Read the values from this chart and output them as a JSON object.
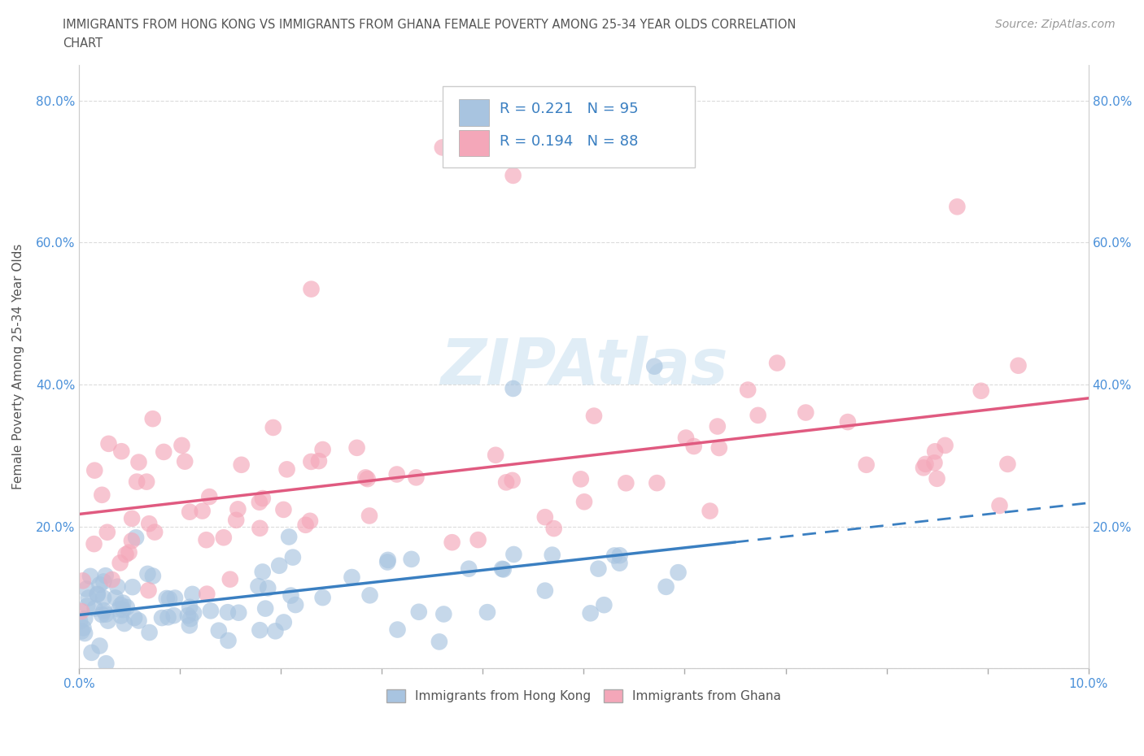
{
  "title_line1": "IMMIGRANTS FROM HONG KONG VS IMMIGRANTS FROM GHANA FEMALE POVERTY AMONG 25-34 YEAR OLDS CORRELATION",
  "title_line2": "CHART",
  "source": "Source: ZipAtlas.com",
  "ylabel": "Female Poverty Among 25-34 Year Olds",
  "xlim": [
    0.0,
    0.1
  ],
  "ylim": [
    0.0,
    0.85
  ],
  "hk_color": "#a8c4e0",
  "ghana_color": "#f4a7b9",
  "hk_line_color": "#3a7fc1",
  "ghana_line_color": "#e05a80",
  "hk_R": 0.221,
  "hk_N": 95,
  "ghana_R": 0.194,
  "ghana_N": 88,
  "background_color": "#ffffff",
  "grid_color": "#cccccc",
  "legend_label_hk": "Immigrants from Hong Kong",
  "legend_label_ghana": "Immigrants from Ghana",
  "watermark_color": "#c8dff0"
}
